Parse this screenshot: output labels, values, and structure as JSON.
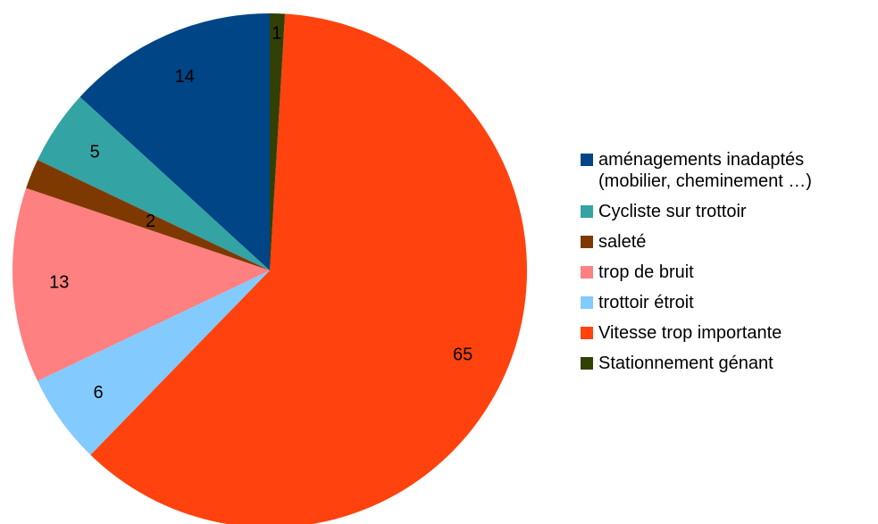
{
  "chart_data": {
    "type": "pie",
    "categories": [
      "aménagements inadaptés (mobilier, cheminement …)",
      "Cycliste sur trottoir",
      "saleté",
      "trop de bruit",
      "trottoir étroit",
      "Vitesse trop importante",
      "Stationnement génant"
    ],
    "values": [
      14,
      5,
      2,
      13,
      6,
      65,
      1
    ],
    "colors": [
      "#004586",
      "#33a3a3",
      "#7e3900",
      "#ff8080",
      "#83caff",
      "#ff420e",
      "#314004"
    ],
    "legend": "right"
  }
}
